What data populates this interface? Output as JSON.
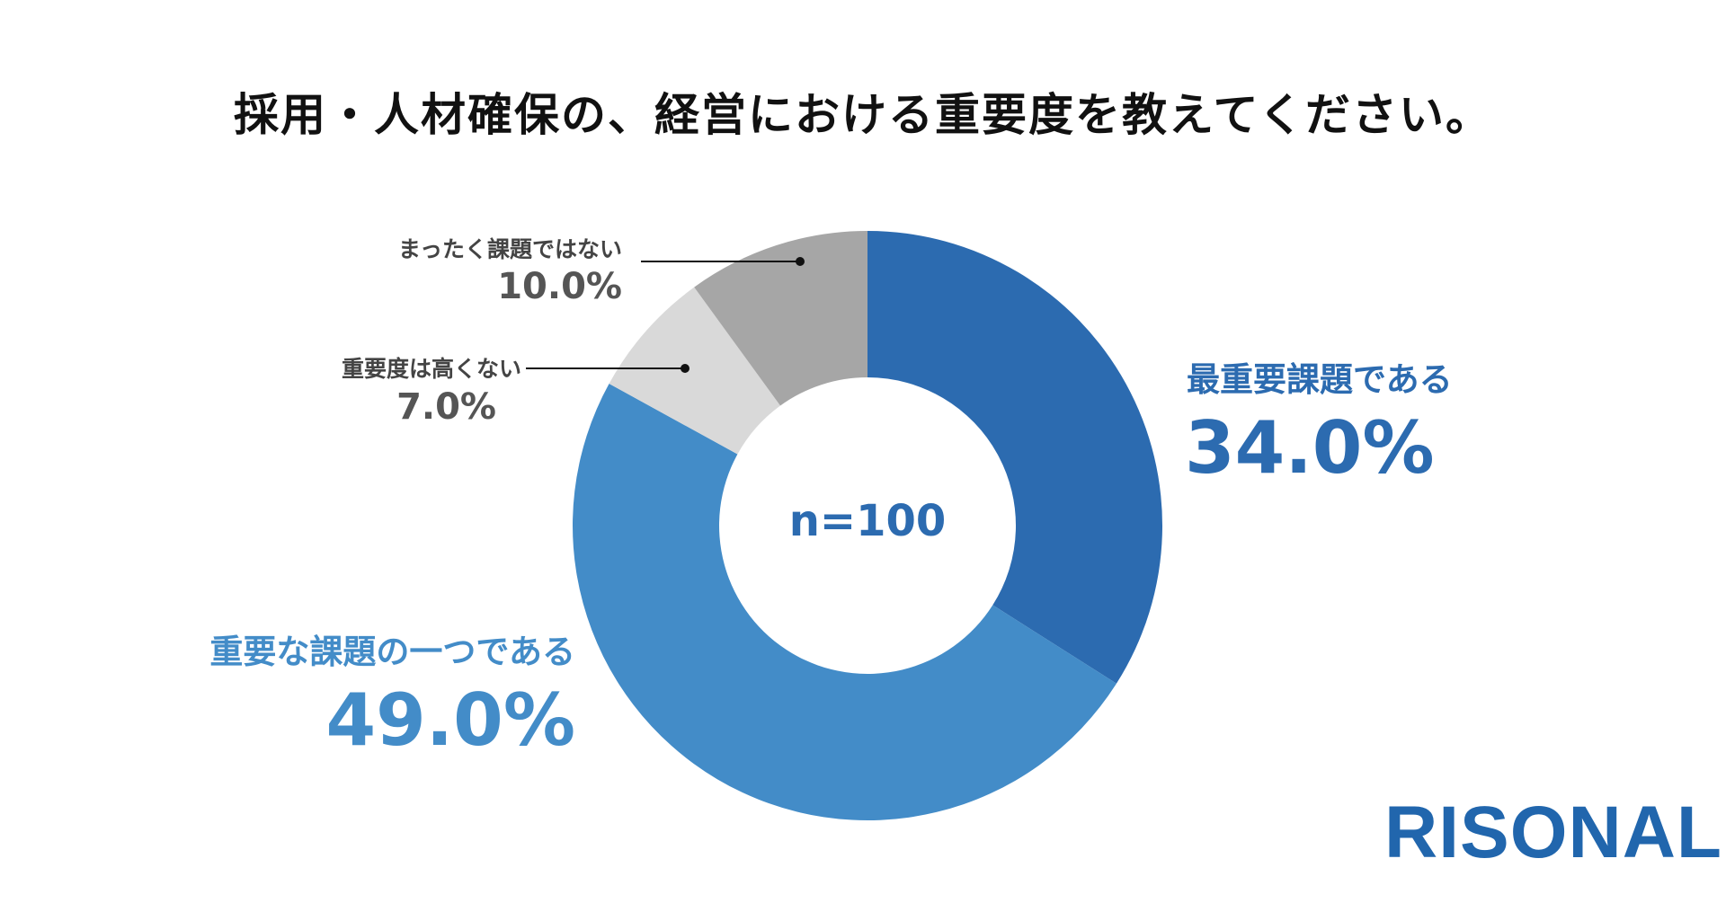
{
  "title": "採用・人材確保の、経営における重要度を教えてください。",
  "chart_data": {
    "type": "pie",
    "style": "donut",
    "center_label": "n=100",
    "slices": [
      {
        "label": "最重要課題である",
        "value": 34.0,
        "value_label": "34.0%",
        "color": "#2c6bb0"
      },
      {
        "label": "重要な課題の一つである",
        "value": 49.0,
        "value_label": "49.0%",
        "color": "#438cc8"
      },
      {
        "label": "重要度は高くない",
        "value": 7.0,
        "value_label": "7.0%",
        "color": "#d9d9d9"
      },
      {
        "label": "まったく課題ではない",
        "value": 10.0,
        "value_label": "10.0%",
        "color": "#a6a6a6"
      }
    ]
  },
  "logo": "RISONAL"
}
